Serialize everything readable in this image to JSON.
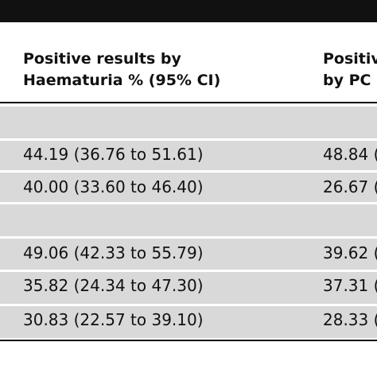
{
  "table": {
    "headers": [
      {
        "line1": "Positive results by",
        "line2": "Haematuria % (95% CI)"
      },
      {
        "line1": "Positiv",
        "line2": "by PC"
      }
    ],
    "rows": [
      {
        "type": "section",
        "values": [
          "",
          ""
        ]
      },
      {
        "type": "data",
        "values": [
          "44.19 (36.76 to 51.61)",
          "48.84 ("
        ]
      },
      {
        "type": "data",
        "values": [
          "40.00 (33.60 to 46.40)",
          "26.67 ("
        ]
      },
      {
        "type": "section",
        "values": [
          "",
          ""
        ]
      },
      {
        "type": "data",
        "values": [
          "49.06 (42.33 to 55.79)",
          "39.62 ("
        ]
      },
      {
        "type": "data",
        "values": [
          "35.82 (24.34 to 47.30)",
          "37.31 ("
        ]
      },
      {
        "type": "data",
        "values": [
          "30.83 (22.57 to 39.10)",
          "28.33 ("
        ]
      }
    ]
  }
}
